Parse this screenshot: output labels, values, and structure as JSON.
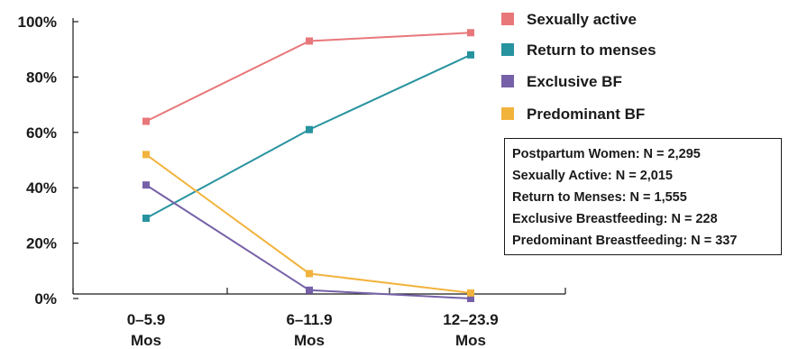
{
  "chart_data": {
    "type": "line",
    "categories": [
      [
        "0–5.9",
        "Mos"
      ],
      [
        "6–11.9",
        "Mos"
      ],
      [
        "12–23.9",
        "Mos"
      ]
    ],
    "y_ticks": [
      "0%",
      "20%",
      "40%",
      "60%",
      "80%",
      "100%"
    ],
    "ylim": [
      0,
      100
    ],
    "grid": false,
    "legend_position": "top-right",
    "series": [
      {
        "name": "Sexually active",
        "color": "#e8777a",
        "values": [
          64,
          93,
          96
        ]
      },
      {
        "name": "Return to menses",
        "color": "#27939f",
        "values": [
          29,
          61,
          88
        ]
      },
      {
        "name": "Exclusive BF",
        "color": "#7661a8",
        "values": [
          41,
          3,
          0
        ]
      },
      {
        "name": "Predominant BF",
        "color": "#f2b33d",
        "values": [
          52,
          9,
          2
        ]
      }
    ],
    "annotation": [
      "Postpartum Women: N = 2,295",
      "Sexually Active: N = 2,015",
      "Return to Menses: N = 1,555",
      "Exclusive Breastfeeding: N = 228",
      "Predominant Breastfeeding: N = 337"
    ]
  }
}
